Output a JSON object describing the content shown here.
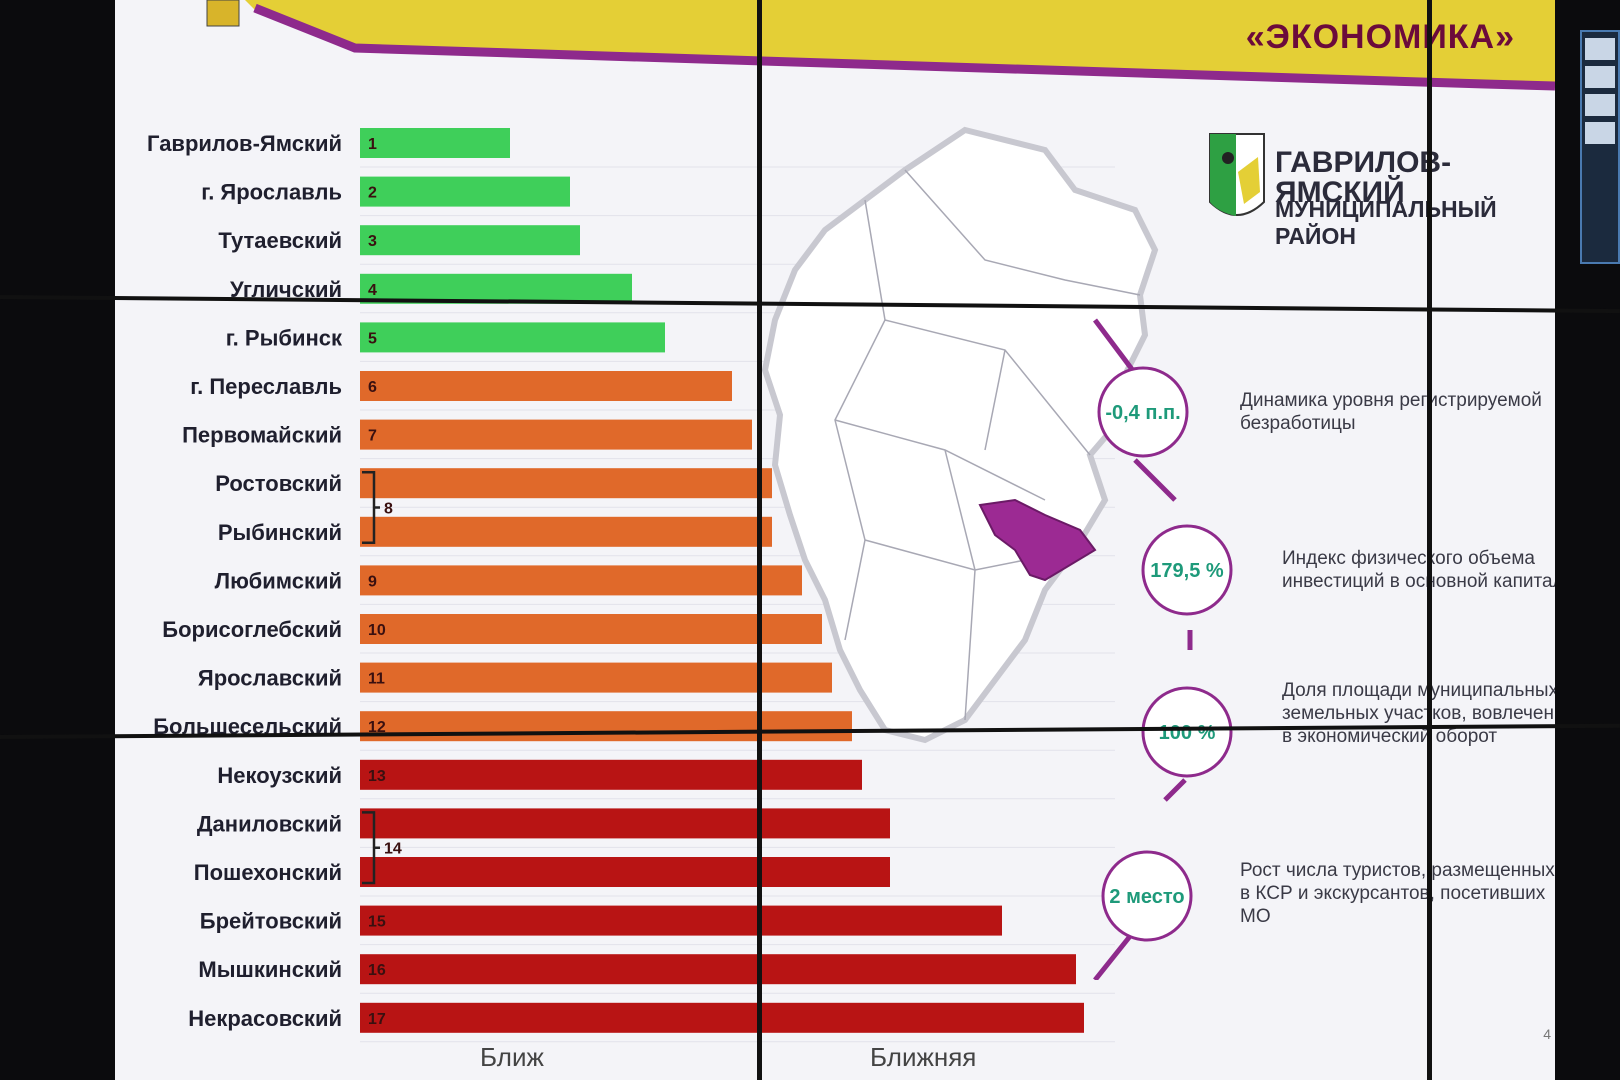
{
  "header": {
    "section_title": "«ЭКОНОМИКА»",
    "accent_color": "#e4cf36",
    "band_color": "#8e2a8c"
  },
  "chart_data": {
    "type": "bar",
    "orientation": "horizontal",
    "categories": [
      "Гаврилов-Ямский",
      "г. Ярославль",
      "Тутаевский",
      "Угличский",
      "г. Рыбинск",
      "г. Переславль",
      "Первомайский",
      "Ростовский",
      "Рыбинский",
      "Любимский",
      "Борисоглебский",
      "Ярославский",
      "Большесельский",
      "Некоузский",
      "Даниловский",
      "Пошехонский",
      "Брейтовский",
      "Мышкинский",
      "Некрасовский"
    ],
    "rank_labels": [
      "1",
      "2",
      "3",
      "4",
      "5",
      "6",
      "7",
      "",
      "",
      "9",
      "10",
      "11",
      "12",
      "13",
      "",
      "",
      "15",
      "16",
      "17"
    ],
    "values": [
      1,
      2,
      3,
      4,
      5,
      6,
      7,
      8,
      8,
      9,
      10,
      11,
      12,
      13,
      14,
      14,
      15,
      16,
      17
    ],
    "bar_lengths": [
      150,
      210,
      220,
      272,
      305,
      372,
      392,
      412,
      412,
      442,
      462,
      472,
      492,
      502,
      530,
      530,
      642,
      716,
      724
    ],
    "groups": [
      {
        "label": "8",
        "from": 7,
        "to": 8
      },
      {
        "label": "14",
        "from": 14,
        "to": 15
      }
    ],
    "colors": {
      "green": "#3fcf5a",
      "orange": "#e0692a",
      "red": "#b81414"
    },
    "color_by_index": [
      "green",
      "green",
      "green",
      "green",
      "green",
      "orange",
      "orange",
      "orange",
      "orange",
      "orange",
      "orange",
      "orange",
      "orange",
      "red",
      "red",
      "red",
      "red",
      "red",
      "red"
    ]
  },
  "district": {
    "name": "ГАВРИЛОВ-ЯМСКИЙ",
    "type": "МУНИЦИПАЛЬНЫЙ РАЙОН",
    "highlight_color": "#9c2a93"
  },
  "kpis": [
    {
      "value": "-0,4 п.п.",
      "text": "Динамика уровня регистрируемой безработицы"
    },
    {
      "value": "179,5 %",
      "text": "Индекс физического объема инвестиций в основной капитал"
    },
    {
      "value": "100 %",
      "text": "Доля площади муниципальных земельных участков, вовлеченных в экономический оборот"
    },
    {
      "value": "2 место",
      "text": "Рост числа туристов, размещенных в КСР и экскурсантов, посетивших МО"
    }
  ],
  "footer": {
    "page_number": "4",
    "label_left": "Ближ",
    "label_right": "Ближняя"
  }
}
